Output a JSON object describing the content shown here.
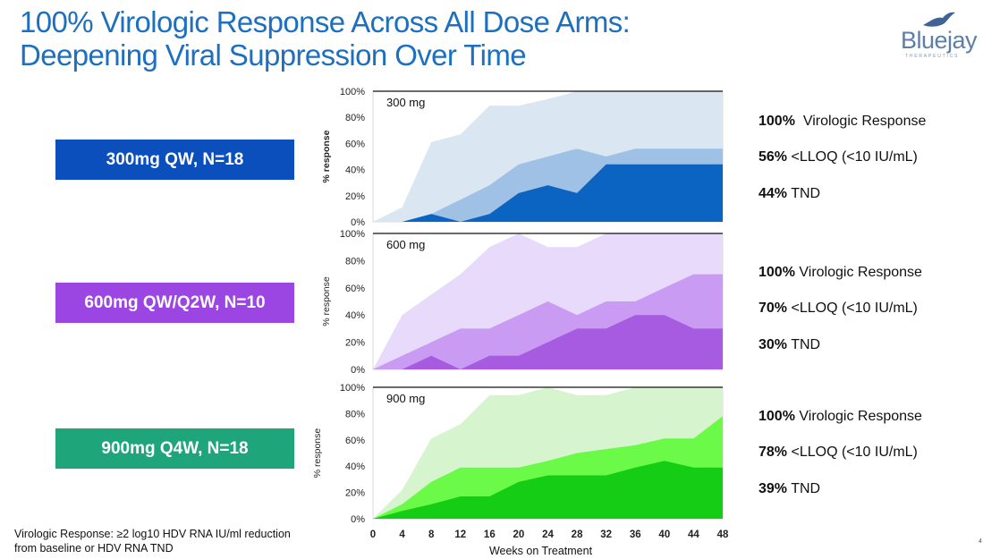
{
  "title": {
    "line1": "100% Virologic Response Across All Dose Arms:",
    "line2": "Deepening Viral Suppression Over Time"
  },
  "logo": {
    "name": "Bluejay",
    "subtitle": "THERAPEUTICS",
    "icon": "bird-icon"
  },
  "colors": {
    "title": "#1d6fbf",
    "arm_300": "#0b4fbd",
    "arm_600": "#9b45e3",
    "arm_900": "#1ea57a"
  },
  "arms": [
    {
      "label": "300mg QW, N=18",
      "stats": [
        {
          "value": "100%",
          "text": "Virologic Response"
        },
        {
          "value": "56%",
          "text": "<LLOQ (<10 IU/mL)"
        },
        {
          "value": "44%",
          "text": "TND"
        }
      ]
    },
    {
      "label": "600mg QW/Q2W, N=10",
      "stats": [
        {
          "value": "100%",
          "text": "Virologic Response"
        },
        {
          "value": "70%",
          "text": "<LLOQ (<10 IU/mL)"
        },
        {
          "value": "30%",
          "text": "TND"
        }
      ]
    },
    {
      "label": "900mg Q4W, N=18",
      "stats": [
        {
          "value": "100%",
          "text": "Virologic Response"
        },
        {
          "value": "78%",
          "text": "<LLOQ (<10 IU/mL)"
        },
        {
          "value": "39%",
          "text": "TND"
        }
      ]
    }
  ],
  "footnote": {
    "line1": "Virologic Response: ≥2 log10 HDV RNA IU/ml reduction",
    "line2": "from baseline or HDV RNA TND"
  },
  "page_mark": "4",
  "chart_data": [
    {
      "type": "area",
      "annotation": "300 mg",
      "ylabel": "% response",
      "xlabel": "",
      "ylim": [
        0,
        100
      ],
      "yticks": [
        "0%",
        "20%",
        "40%",
        "60%",
        "80%",
        "100%"
      ],
      "x": [
        0,
        4,
        8,
        12,
        16,
        20,
        24,
        28,
        32,
        36,
        40,
        44,
        48
      ],
      "colors": [
        "#dbe6f3",
        "#9fc1e6",
        "#0b63c2"
      ],
      "series": [
        {
          "values": [
            0,
            11,
            61,
            67,
            89,
            89,
            94,
            100,
            100,
            100,
            100,
            100,
            100
          ]
        },
        {
          "values": [
            0,
            0,
            6,
            17,
            28,
            44,
            50,
            56,
            50,
            56,
            56,
            56,
            56
          ]
        },
        {
          "values": [
            0,
            0,
            6,
            0,
            6,
            22,
            28,
            22,
            44,
            44,
            44,
            44,
            44
          ]
        }
      ]
    },
    {
      "type": "area",
      "annotation": "600 mg",
      "ylabel": "% response",
      "xlabel": "",
      "ylim": [
        0,
        100
      ],
      "yticks": [
        "0%",
        "20%",
        "40%",
        "60%",
        "80%",
        "100%"
      ],
      "x": [
        0,
        4,
        8,
        12,
        16,
        20,
        24,
        28,
        32,
        36,
        40,
        44,
        48
      ],
      "colors": [
        "#e8dafb",
        "#c99bf2",
        "#a65be0"
      ],
      "series": [
        {
          "values": [
            0,
            40,
            55,
            70,
            90,
            100,
            90,
            90,
            100,
            100,
            100,
            100,
            100
          ]
        },
        {
          "values": [
            0,
            10,
            20,
            30,
            30,
            40,
            50,
            40,
            50,
            50,
            60,
            70,
            70
          ]
        },
        {
          "values": [
            0,
            0,
            10,
            0,
            10,
            10,
            20,
            30,
            30,
            40,
            40,
            30,
            30
          ]
        }
      ]
    },
    {
      "type": "area",
      "annotation": "900 mg",
      "ylabel": "% response",
      "xlabel": "Weeks on Treatment",
      "ylim": [
        0,
        100
      ],
      "yticks": [
        "0%",
        "20%",
        "40%",
        "60%",
        "80%",
        "100%"
      ],
      "x": [
        0,
        4,
        8,
        12,
        16,
        20,
        24,
        28,
        32,
        36,
        40,
        44,
        48
      ],
      "xticks": [
        "0",
        "4",
        "8",
        "12",
        "16",
        "20",
        "24",
        "28",
        "32",
        "36",
        "40",
        "44",
        "48"
      ],
      "colors": [
        "#d6f5cf",
        "#6bfa48",
        "#16cd16"
      ],
      "series": [
        {
          "values": [
            0,
            22,
            61,
            72,
            94,
            94,
            100,
            94,
            94,
            100,
            100,
            100,
            100
          ]
        },
        {
          "values": [
            0,
            11,
            28,
            39,
            39,
            39,
            44,
            50,
            53,
            56,
            61,
            61,
            78
          ]
        },
        {
          "values": [
            0,
            6,
            11,
            17,
            17,
            28,
            33,
            33,
            33,
            39,
            44,
            39,
            39
          ]
        }
      ]
    }
  ]
}
